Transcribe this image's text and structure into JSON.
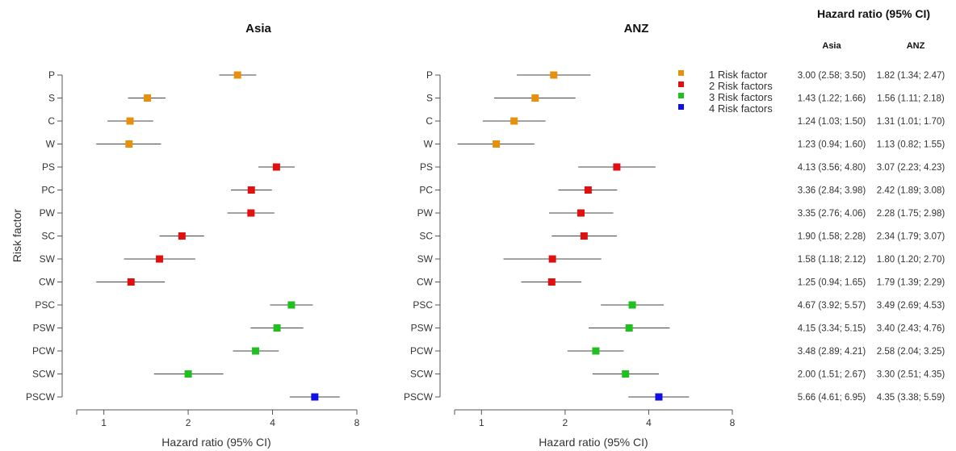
{
  "chart_data": [
    {
      "type": "forest",
      "title": "Asia",
      "xlabel": "Hazard ratio (95% CI)",
      "ylabel": "Risk factor",
      "x_scale": "log2",
      "xlim": [
        0.8,
        8
      ],
      "xticks": [
        1,
        2,
        4,
        8
      ],
      "categories": [
        "P",
        "S",
        "C",
        "W",
        "PS",
        "PC",
        "PW",
        "SC",
        "SW",
        "CW",
        "PSC",
        "PSW",
        "PCW",
        "SCW",
        "PSCW"
      ],
      "estimates": [
        3.0,
        1.43,
        1.24,
        1.23,
        4.13,
        3.36,
        3.35,
        1.9,
        1.58,
        1.25,
        4.67,
        4.15,
        3.48,
        2.0,
        5.66
      ],
      "ci_low": [
        2.58,
        1.22,
        1.03,
        0.94,
        3.56,
        2.84,
        2.76,
        1.58,
        1.18,
        0.94,
        3.92,
        3.34,
        2.89,
        1.51,
        4.61
      ],
      "ci_high": [
        3.5,
        1.66,
        1.5,
        1.6,
        4.8,
        3.98,
        4.06,
        2.28,
        2.12,
        1.65,
        5.57,
        5.15,
        4.21,
        2.67,
        6.95
      ],
      "groups": [
        1,
        1,
        1,
        1,
        2,
        2,
        2,
        2,
        2,
        2,
        3,
        3,
        3,
        3,
        4
      ]
    },
    {
      "type": "forest",
      "title": "ANZ",
      "xlabel": "Hazard ratio (95% CI)",
      "x_scale": "log2",
      "xlim": [
        0.8,
        8
      ],
      "xticks": [
        1,
        2,
        4,
        8
      ],
      "categories": [
        "P",
        "S",
        "C",
        "W",
        "PS",
        "PC",
        "PW",
        "SC",
        "SW",
        "CW",
        "PSC",
        "PSW",
        "PCW",
        "SCW",
        "PSCW"
      ],
      "estimates": [
        1.82,
        1.56,
        1.31,
        1.13,
        3.07,
        2.42,
        2.28,
        2.34,
        1.8,
        1.79,
        3.49,
        3.4,
        2.58,
        3.3,
        4.35
      ],
      "ci_low": [
        1.34,
        1.11,
        1.01,
        0.82,
        2.23,
        1.89,
        1.75,
        1.79,
        1.2,
        1.39,
        2.69,
        2.43,
        2.04,
        2.51,
        3.38
      ],
      "ci_high": [
        2.47,
        2.18,
        1.7,
        1.55,
        4.23,
        3.08,
        2.98,
        3.07,
        2.7,
        2.29,
        4.53,
        4.76,
        3.25,
        4.35,
        5.59
      ],
      "groups": [
        1,
        1,
        1,
        1,
        2,
        2,
        2,
        2,
        2,
        2,
        3,
        3,
        3,
        3,
        4
      ]
    }
  ],
  "legend": [
    {
      "label": "1 Risk factor",
      "color": "#e8900c"
    },
    {
      "label": "2 Risk factors",
      "color": "#e01010"
    },
    {
      "label": "3 Risk factors",
      "color": "#20c020"
    },
    {
      "label": "4 Risk factors",
      "color": "#1010e0"
    }
  ],
  "table": {
    "title": "Hazard ratio (95% CI)",
    "columns": [
      "Asia",
      "ANZ"
    ],
    "rows": [
      [
        "3.00 (2.58; 3.50)",
        "1.82 (1.34; 2.47)"
      ],
      [
        "1.43 (1.22; 1.66)",
        "1.56 (1.11; 2.18)"
      ],
      [
        "1.24 (1.03; 1.50)",
        "1.31 (1.01; 1.70)"
      ],
      [
        "1.23 (0.94; 1.60)",
        "1.13 (0.82; 1.55)"
      ],
      [
        "4.13 (3.56; 4.80)",
        "3.07 (2.23; 4.23)"
      ],
      [
        "3.36 (2.84; 3.98)",
        "2.42 (1.89; 3.08)"
      ],
      [
        "3.35 (2.76; 4.06)",
        "2.28 (1.75; 2.98)"
      ],
      [
        "1.90 (1.58; 2.28)",
        "2.34 (1.79; 3.07)"
      ],
      [
        "1.58 (1.18; 2.12)",
        "1.80 (1.20; 2.70)"
      ],
      [
        "1.25 (0.94; 1.65)",
        "1.79 (1.39; 2.29)"
      ],
      [
        "4.67 (3.92; 5.57)",
        "3.49 (2.69; 4.53)"
      ],
      [
        "4.15 (3.34; 5.15)",
        "3.40 (2.43; 4.76)"
      ],
      [
        "3.48 (2.89; 4.21)",
        "2.58 (2.04; 3.25)"
      ],
      [
        "2.00 (1.51; 2.67)",
        "3.30 (2.51; 4.35)"
      ],
      [
        "5.66 (4.61; 6.95)",
        "4.35 (3.38; 5.59)"
      ]
    ]
  }
}
